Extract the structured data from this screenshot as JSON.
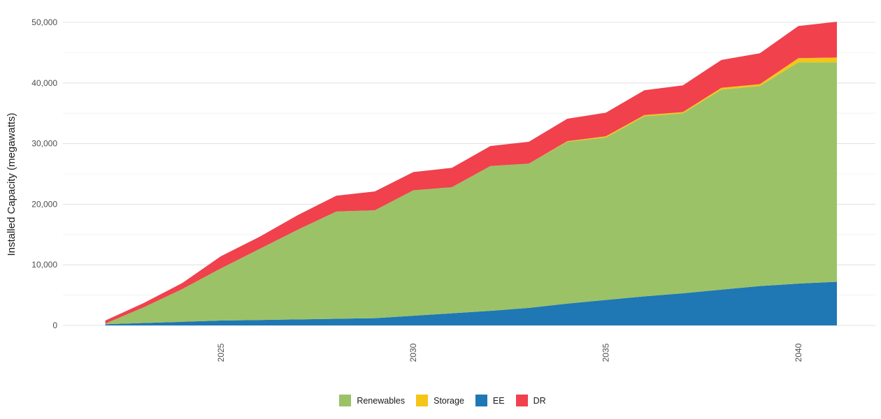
{
  "chart_data": {
    "type": "area",
    "stacked": true,
    "x": [
      2022,
      2023,
      2024,
      2025,
      2026,
      2027,
      2028,
      2029,
      2030,
      2031,
      2032,
      2033,
      2034,
      2035,
      2036,
      2037,
      2038,
      2039,
      2040,
      2041
    ],
    "series": [
      {
        "name": "EE",
        "color": "#1f77b4",
        "values": [
          200,
          400,
          600,
          800,
          900,
          1000,
          1100,
          1200,
          1600,
          2000,
          2400,
          2900,
          3600,
          4200,
          4800,
          5300,
          5900,
          6500,
          6900,
          7200
        ]
      },
      {
        "name": "Renewables",
        "color": "#9bc267",
        "values": [
          100,
          2600,
          5400,
          8600,
          11700,
          14800,
          17700,
          17800,
          20700,
          20800,
          23900,
          23800,
          26700,
          26800,
          29700,
          29700,
          33000,
          33000,
          36500,
          36200
        ]
      },
      {
        "name": "Storage",
        "color": "#f5c518",
        "values": [
          0,
          0,
          0,
          0,
          0,
          0,
          0,
          0,
          0,
          0,
          0,
          0,
          100,
          200,
          200,
          200,
          300,
          300,
          700,
          800
        ]
      },
      {
        "name": "DR",
        "color": "#f0414d",
        "values": [
          500,
          700,
          1000,
          2000,
          2000,
          2400,
          2600,
          3100,
          3000,
          3200,
          3300,
          3600,
          3700,
          3900,
          4100,
          4400,
          4600,
          5100,
          5300,
          5900
        ]
      }
    ],
    "legend_order": [
      "Renewables",
      "Storage",
      "EE",
      "DR"
    ],
    "xticks": [
      2025,
      2030,
      2035,
      2040
    ],
    "yticks": [
      0,
      10000,
      20000,
      30000,
      40000,
      50000
    ],
    "ytick_labels": [
      "0",
      "10,000",
      "20,000",
      "30,000",
      "40,000",
      "50,000"
    ],
    "xlim": [
      2020.9,
      2042
    ],
    "ylim": [
      0,
      50000
    ],
    "ylabel": "Installed Capacity (megawatts)",
    "xlabel": "",
    "grid": true,
    "legend_position": "bottom"
  }
}
